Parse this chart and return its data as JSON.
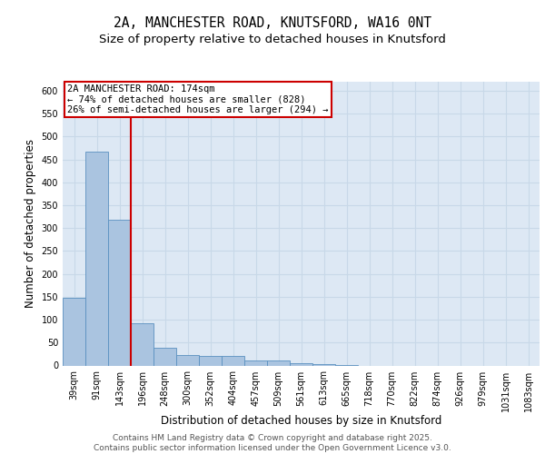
{
  "title_line1": "2A, MANCHESTER ROAD, KNUTSFORD, WA16 0NT",
  "title_line2": "Size of property relative to detached houses in Knutsford",
  "xlabel": "Distribution of detached houses by size in Knutsford",
  "ylabel": "Number of detached properties",
  "categories": [
    "39sqm",
    "91sqm",
    "143sqm",
    "196sqm",
    "248sqm",
    "300sqm",
    "352sqm",
    "404sqm",
    "457sqm",
    "509sqm",
    "561sqm",
    "613sqm",
    "665sqm",
    "718sqm",
    "770sqm",
    "822sqm",
    "874sqm",
    "926sqm",
    "979sqm",
    "1031sqm",
    "1083sqm"
  ],
  "values": [
    148,
    467,
    318,
    93,
    38,
    22,
    20,
    20,
    11,
    10,
    5,
    2,
    1,
    0,
    0,
    0,
    0,
    0,
    0,
    0,
    0
  ],
  "bar_color": "#aac4e0",
  "bar_edge_color": "#5a90c0",
  "grid_color": "#c8d8e8",
  "background_color": "#dde8f4",
  "vline_color": "#cc0000",
  "annotation_text": "2A MANCHESTER ROAD: 174sqm\n← 74% of detached houses are smaller (828)\n26% of semi-detached houses are larger (294) →",
  "annotation_box_color": "#cc0000",
  "ylim": [
    0,
    620
  ],
  "yticks": [
    0,
    50,
    100,
    150,
    200,
    250,
    300,
    350,
    400,
    450,
    500,
    550,
    600
  ],
  "footer_text": "Contains HM Land Registry data © Crown copyright and database right 2025.\nContains public sector information licensed under the Open Government Licence v3.0.",
  "title_fontsize": 10.5,
  "subtitle_fontsize": 9.5,
  "axis_label_fontsize": 8.5,
  "tick_fontsize": 7,
  "annotation_fontsize": 7.5,
  "footer_fontsize": 6.5
}
